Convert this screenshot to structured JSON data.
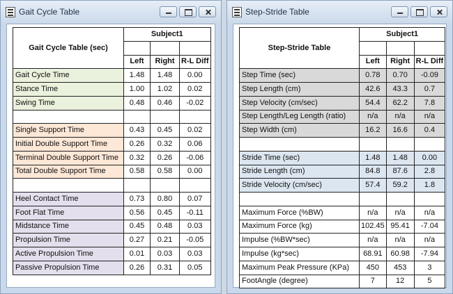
{
  "colors": {
    "green": "#eaf1dc",
    "orange": "#fde7d6",
    "purple": "#e4dfec",
    "blue": "#dce6f0",
    "gray": "#d9d9d9"
  },
  "gait": {
    "window_title": "Gait Cycle Table",
    "table_title": "Gait Cycle Table (sec)",
    "subject": "Subject1",
    "columns": [
      "Left",
      "Right",
      "R-L Diff"
    ],
    "rows": [
      {
        "label": "Gait Cycle Time",
        "left": "1.48",
        "right": "1.48",
        "diff": "0.00"
      },
      {
        "label": "Stance Time",
        "left": "1.00",
        "right": "1.02",
        "diff": "0.02"
      },
      {
        "label": "Swing Time",
        "left": "0.48",
        "right": "0.46",
        "diff": "-0.02"
      },
      {
        "label": "Single Support Time",
        "left": "0.43",
        "right": "0.45",
        "diff": "0.02"
      },
      {
        "label": "Initial Double Support Time",
        "left": "0.26",
        "right": "0.32",
        "diff": "0.06"
      },
      {
        "label": "Terminal Double Support Time",
        "left": "0.32",
        "right": "0.26",
        "diff": "-0.06"
      },
      {
        "label": "Total Double Support Time",
        "left": "0.58",
        "right": "0.58",
        "diff": "0.00"
      },
      {
        "label": "Heel Contact Time",
        "left": "0.73",
        "right": "0.80",
        "diff": "0.07"
      },
      {
        "label": "Foot Flat Time",
        "left": "0.56",
        "right": "0.45",
        "diff": "-0.11"
      },
      {
        "label": "Midstance Time",
        "left": "0.45",
        "right": "0.48",
        "diff": "0.03"
      },
      {
        "label": "Propulsion Time",
        "left": "0.27",
        "right": "0.21",
        "diff": "-0.05"
      },
      {
        "label": "Active Propulsion Time",
        "left": "0.01",
        "right": "0.03",
        "diff": "0.03"
      },
      {
        "label": "Passive Propulsion Time",
        "left": "0.26",
        "right": "0.31",
        "diff": "0.05"
      }
    ]
  },
  "step": {
    "window_title": "Step-Stride Table",
    "table_title": "Step-Stride Table",
    "subject": "Subject1",
    "columns": [
      "Left",
      "Right",
      "R-L Diff"
    ],
    "rows": [
      {
        "label": "Step Time (sec)",
        "left": "0.78",
        "right": "0.70",
        "diff": "-0.09"
      },
      {
        "label": "Step Length (cm)",
        "left": "42.6",
        "right": "43.3",
        "diff": "0.7"
      },
      {
        "label": "Step Velocity (cm/sec)",
        "left": "54.4",
        "right": "62.2",
        "diff": "7.8"
      },
      {
        "label": "Step Length/Leg Length (ratio)",
        "left": "n/a",
        "right": "n/a",
        "diff": "n/a"
      },
      {
        "label": "Step Width (cm)",
        "left": "16.2",
        "right": "16.6",
        "diff": "0.4"
      },
      {
        "label": "Stride Time (sec)",
        "left": "1.48",
        "right": "1.48",
        "diff": "0.00"
      },
      {
        "label": "Stride Length (cm)",
        "left": "84.8",
        "right": "87.6",
        "diff": "2.8"
      },
      {
        "label": "Stride Velocity (cm/sec)",
        "left": "57.4",
        "right": "59.2",
        "diff": "1.8"
      },
      {
        "label": "Maximum Force (%BW)",
        "left": "n/a",
        "right": "n/a",
        "diff": "n/a"
      },
      {
        "label": "Maximum Force (kg)",
        "left": "102.45",
        "right": "95.41",
        "diff": "-7.04"
      },
      {
        "label": "Impulse (%BW*sec)",
        "left": "n/a",
        "right": "n/a",
        "diff": "n/a"
      },
      {
        "label": "Impulse (kg*sec)",
        "left": "68.91",
        "right": "60.98",
        "diff": "-7.94"
      },
      {
        "label": "Maximum Peak Pressure (KPa)",
        "left": "450",
        "right": "453",
        "diff": "3"
      },
      {
        "label": "FootAngle (degree)",
        "left": "7",
        "right": "12",
        "diff": "5"
      }
    ]
  }
}
